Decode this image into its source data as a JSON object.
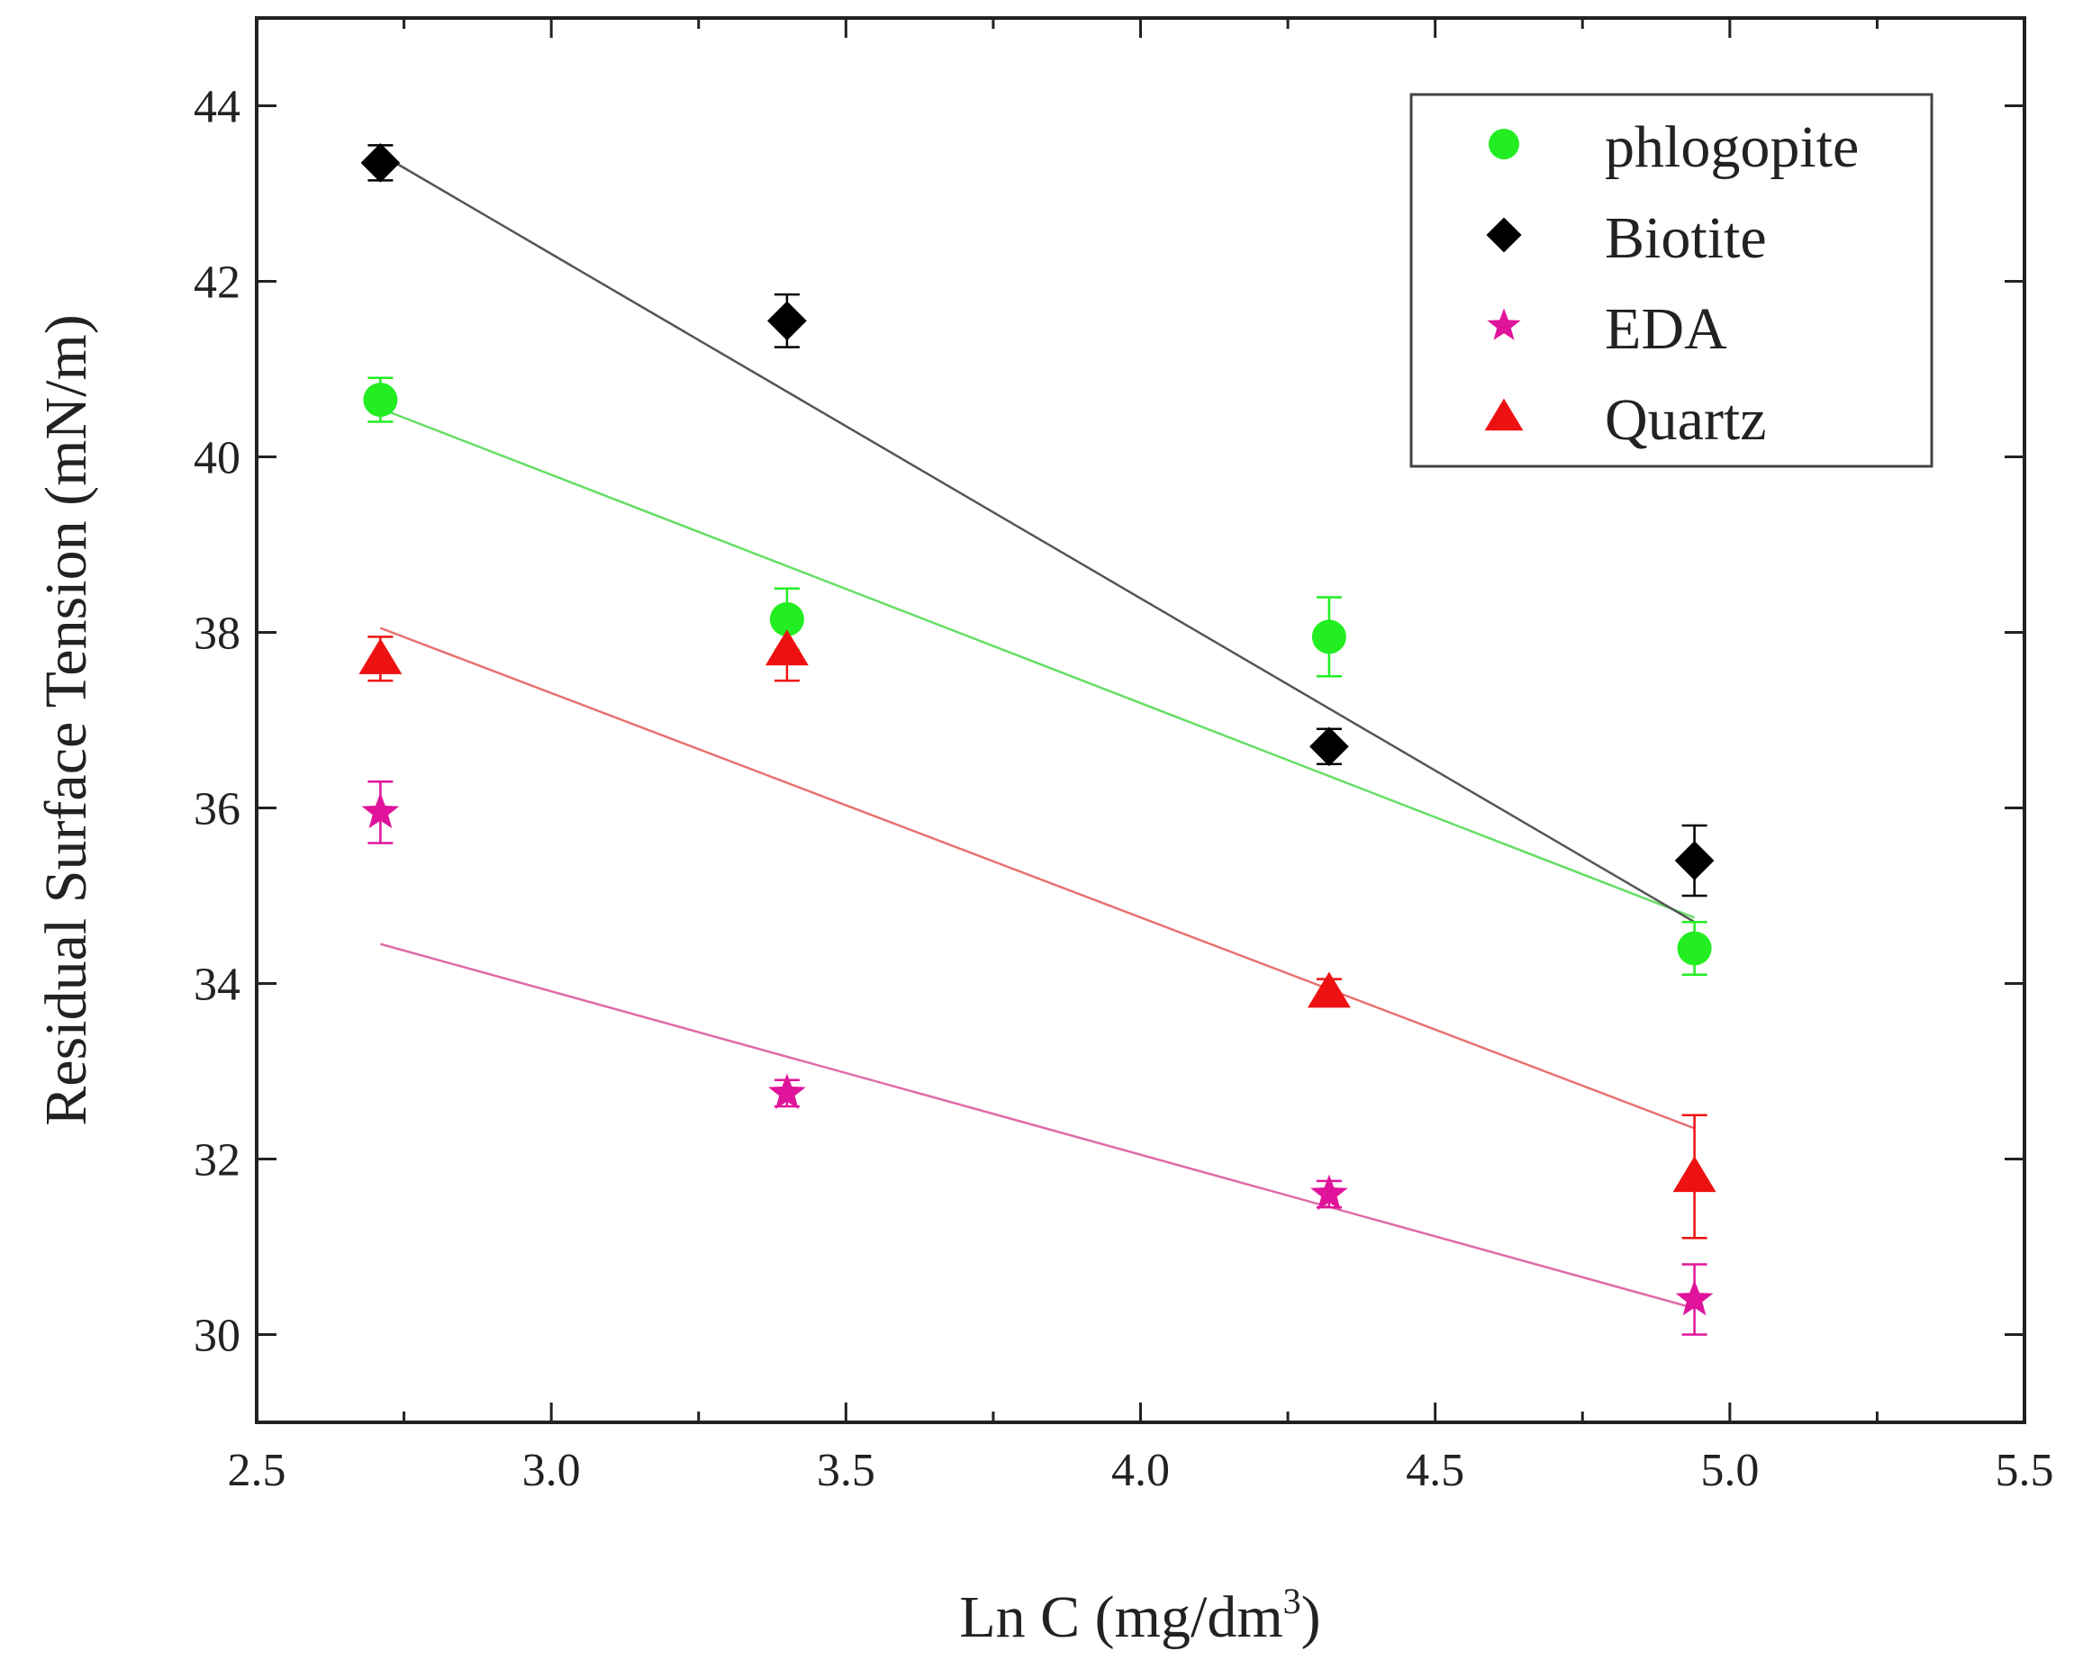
{
  "chart_data": {
    "type": "scatter",
    "title": "",
    "xlabel": "Ln C (mg/dm",
    "xlabel_sup": "3",
    "xlabel_close": ")",
    "ylabel": "Residual Surface Tension (mN/m)",
    "xlim": [
      2.5,
      5.5
    ],
    "ylim": [
      29,
      45
    ],
    "xticks": [
      2.5,
      3.0,
      3.5,
      4.0,
      4.5,
      5.0,
      5.5
    ],
    "xtick_labels": [
      "2.5",
      "3.0",
      "3.5",
      "4.0",
      "4.5",
      "5.0",
      "5.5"
    ],
    "yticks": [
      30,
      32,
      34,
      36,
      38,
      40,
      42,
      44
    ],
    "ytick_labels": [
      "30",
      "32",
      "34",
      "36",
      "38",
      "40",
      "42",
      "44"
    ],
    "legend_position": "top-right",
    "grid": false,
    "series": [
      {
        "name": "phlogopite",
        "marker": "circle",
        "color": "#22ee22",
        "line_color": "#66dd66",
        "x": [
          2.71,
          3.4,
          4.32,
          4.94
        ],
        "y": [
          40.65,
          38.15,
          37.95,
          34.4
        ],
        "err": [
          0.25,
          0.35,
          0.45,
          0.3
        ],
        "fit": {
          "x": [
            2.71,
            4.94
          ],
          "y": [
            40.55,
            34.75
          ]
        }
      },
      {
        "name": "Biotite",
        "marker": "diamond",
        "color": "#000000",
        "line_color": "#555555",
        "x": [
          2.71,
          3.4,
          4.32,
          4.94
        ],
        "y": [
          43.35,
          41.55,
          36.7,
          35.4
        ],
        "err": [
          0.2,
          0.3,
          0.2,
          0.4
        ],
        "fit": {
          "x": [
            2.71,
            4.94
          ],
          "y": [
            43.45,
            34.7
          ]
        }
      },
      {
        "name": "EDA",
        "marker": "star",
        "color": "#e0149a",
        "line_color": "#e06aaa",
        "x": [
          2.71,
          3.4,
          4.32,
          4.94
        ],
        "y": [
          35.95,
          32.75,
          31.6,
          30.4
        ],
        "err": [
          0.35,
          0.15,
          0.15,
          0.4
        ],
        "fit": {
          "x": [
            2.71,
            4.94
          ],
          "y": [
            34.45,
            30.3
          ]
        }
      },
      {
        "name": "Quartz",
        "marker": "triangle",
        "color": "#ee1111",
        "line_color": "#e87070",
        "x": [
          2.71,
          3.4,
          4.32,
          4.94
        ],
        "y": [
          37.7,
          37.8,
          33.9,
          31.8
        ],
        "err": [
          0.25,
          0.35,
          0.15,
          0.7
        ],
        "fit": {
          "x": [
            2.71,
            4.94
          ],
          "y": [
            38.05,
            32.35
          ]
        }
      }
    ]
  }
}
